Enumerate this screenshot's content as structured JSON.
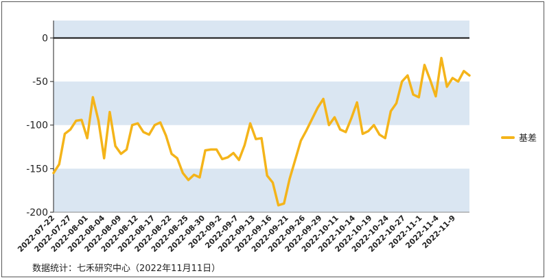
{
  "chart_data": {
    "type": "line",
    "ylim": [
      -200,
      20
    ],
    "yticks": [
      0,
      -50,
      -100,
      -150,
      -200
    ],
    "tick_labels": [
      "2022-07-22",
      "2022-07-27",
      "2022-08-01",
      "2022-08-04",
      "2022-08-09",
      "2022-08-12",
      "2022-08-17",
      "2022-08-22",
      "2022-08-25",
      "2022-08-30",
      "2022-09-2",
      "2022-09-7",
      "2022-09-13",
      "2022-09-16",
      "2022-09-21",
      "2022-09-26",
      "2022-09-29",
      "2022-10-11",
      "2022-10-14",
      "2022-10-19",
      "2022-10-24",
      "2022-10-27",
      "2022-11-1",
      "2022-11-4",
      "2022-11-9"
    ],
    "band_color": "#DAE6F2",
    "series": [
      {
        "name": "基差",
        "color": "#F4B41A",
        "values": [
          -155,
          -145,
          -110,
          -105,
          -95,
          -94,
          -115,
          -68,
          -95,
          -138,
          -85,
          -124,
          -133,
          -128,
          -100,
          -98,
          -108,
          -111,
          -100,
          -97,
          -112,
          -133,
          -138,
          -155,
          -163,
          -157,
          -160,
          -129,
          -128,
          -128,
          -139,
          -137,
          -132,
          -140,
          -123,
          -98,
          -116,
          -115,
          -158,
          -166,
          -192,
          -190,
          -162,
          -140,
          -118,
          -106,
          -93,
          -80,
          -70,
          -100,
          -91,
          -105,
          -108,
          -92,
          -74,
          -110,
          -107,
          -100,
          -111,
          -115,
          -84,
          -75,
          -50,
          -43,
          -65,
          -68,
          -31,
          -48,
          -67,
          -23,
          -56,
          -46,
          -50,
          -38,
          -43
        ]
      }
    ],
    "legend": {
      "position": "right",
      "label": "基差"
    }
  },
  "footnote": "数据统计：七禾研究中心（2022年11月11日）"
}
